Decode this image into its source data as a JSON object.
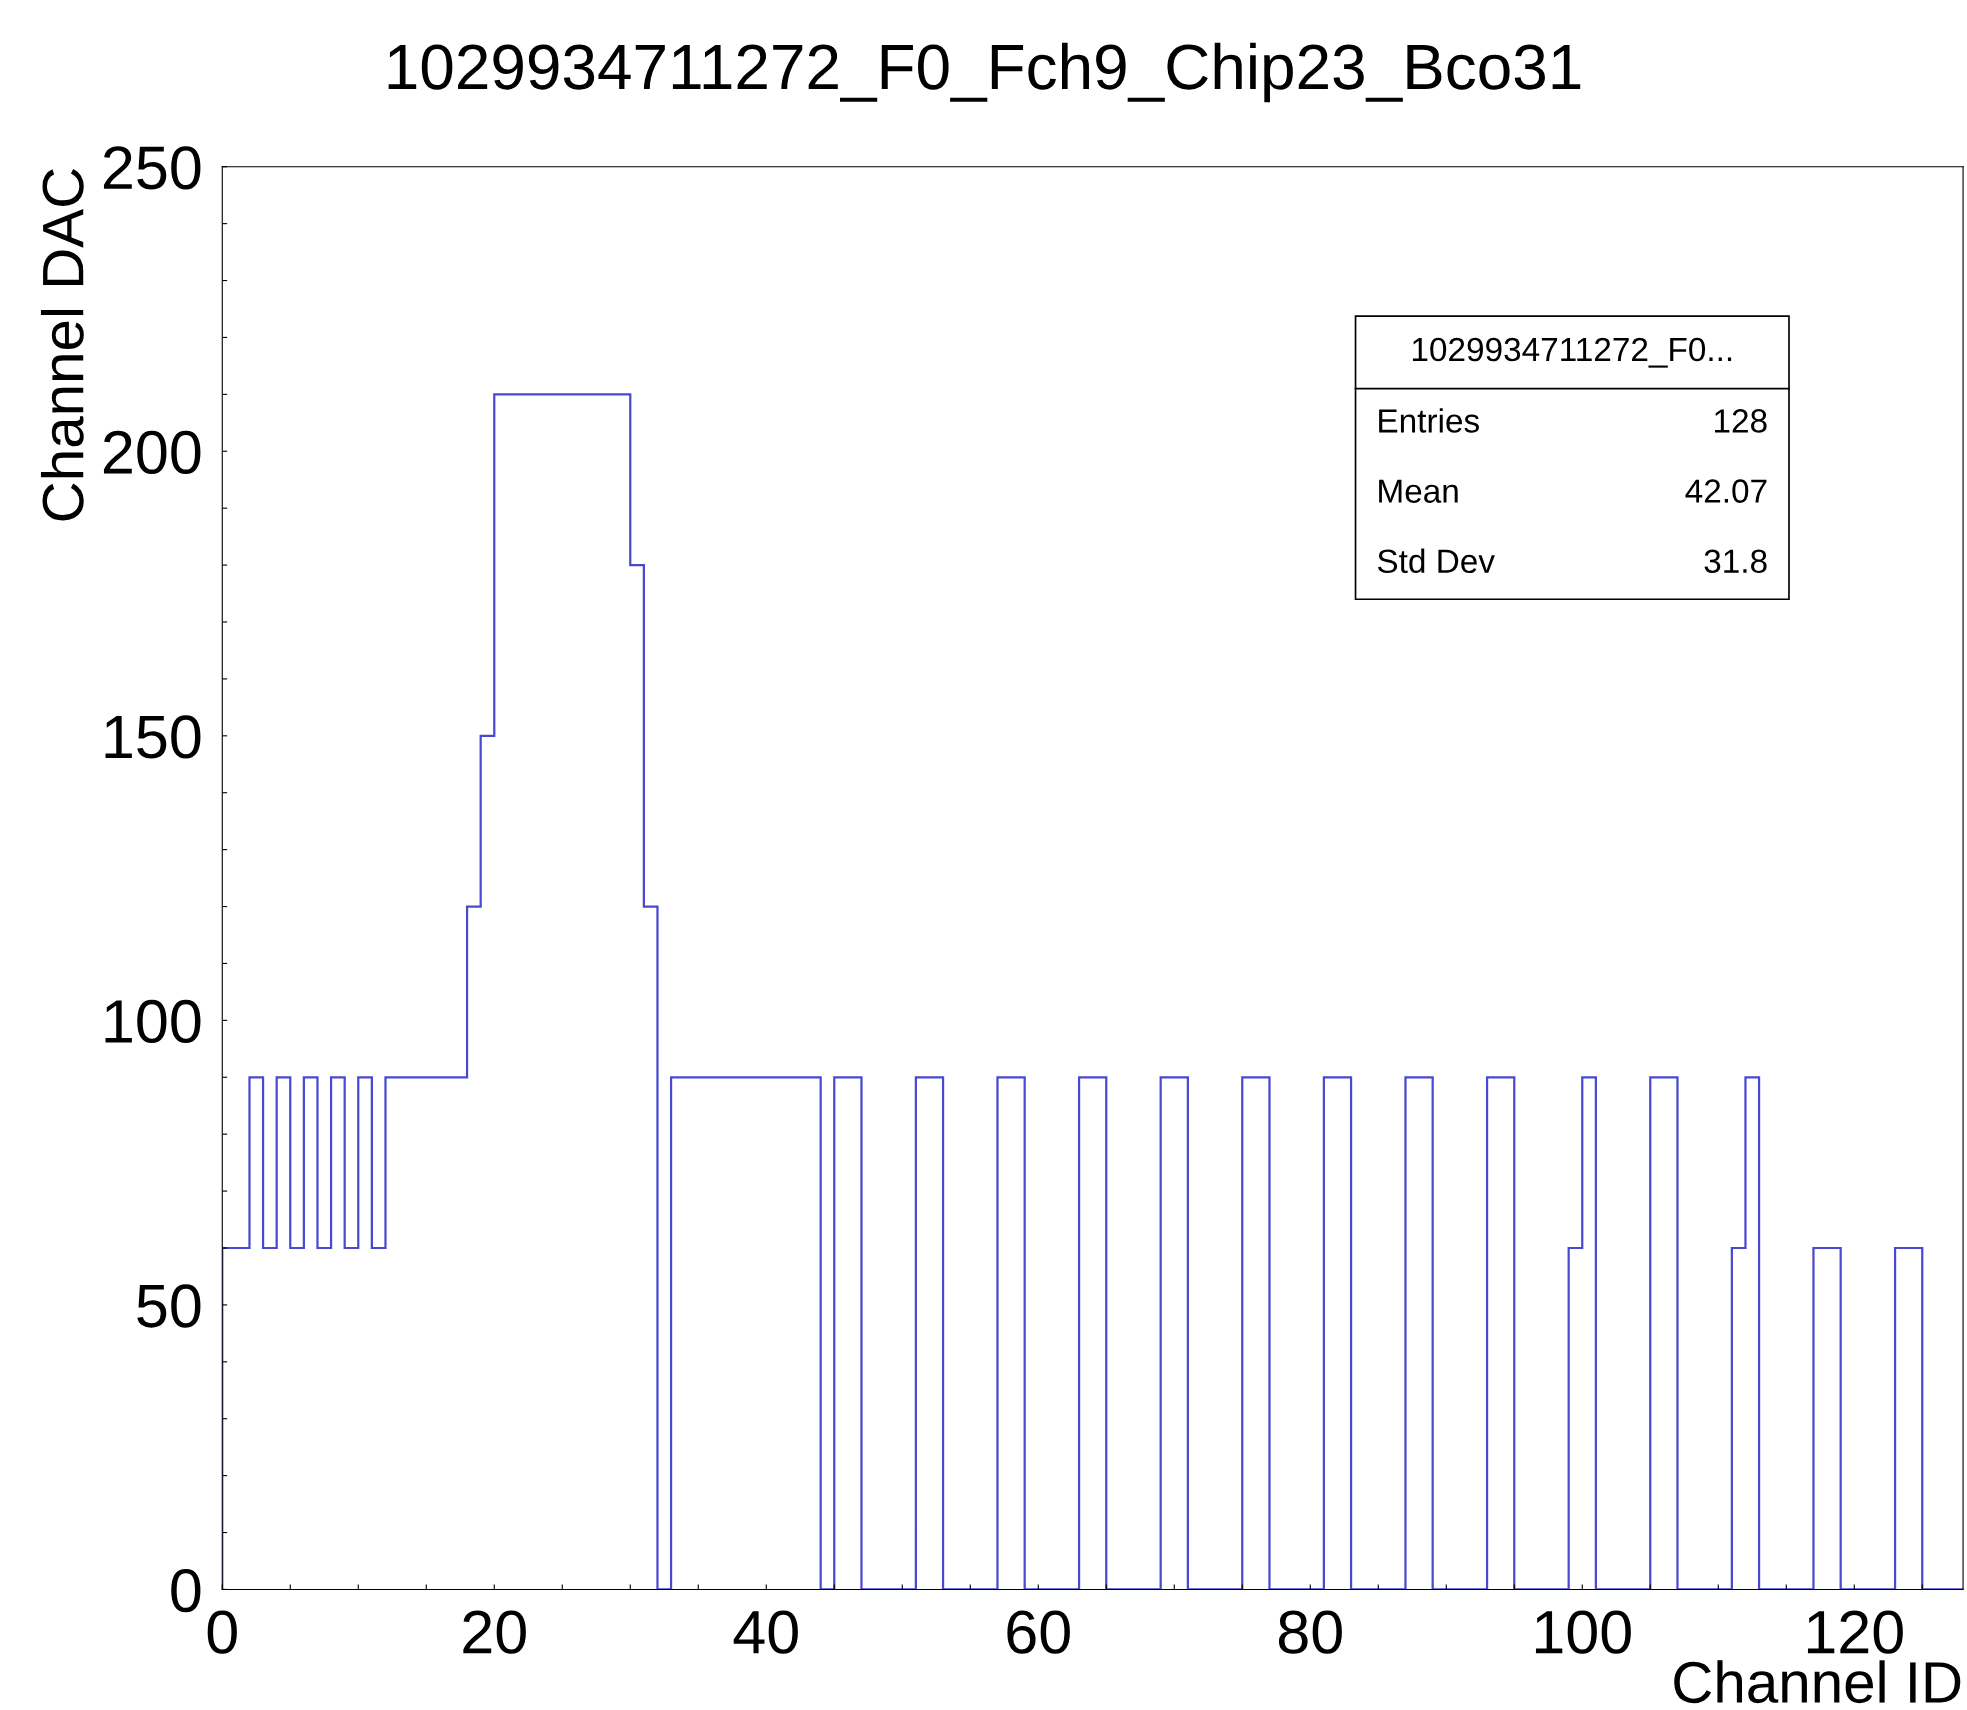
{
  "chart_data": {
    "type": "histogram",
    "title": "1029934711272_F0_Fch9_Chip23_Bco31",
    "xlabel": "Channel ID",
    "ylabel": "Channel DAC",
    "bins": [
      0,
      1,
      2,
      3,
      4,
      5,
      6,
      7,
      8,
      9,
      10,
      11,
      12,
      13,
      14,
      15,
      16,
      17,
      18,
      19,
      20,
      21,
      22,
      23,
      24,
      25,
      26,
      27,
      28,
      29,
      30,
      31,
      32,
      33,
      34,
      35,
      36,
      37,
      38,
      39,
      40,
      41,
      42,
      43,
      44,
      45,
      46,
      47,
      48,
      49,
      50,
      51,
      52,
      53,
      54,
      55,
      56,
      57,
      58,
      59,
      60,
      61,
      62,
      63,
      64,
      65,
      66,
      67,
      68,
      69,
      70,
      71,
      72,
      73,
      74,
      75,
      76,
      77,
      78,
      79,
      80,
      81,
      82,
      83,
      84,
      85,
      86,
      87,
      88,
      89,
      90,
      91,
      92,
      93,
      94,
      95,
      96,
      97,
      98,
      99,
      100,
      101,
      102,
      103,
      104,
      105,
      106,
      107,
      108,
      109,
      110,
      111,
      112,
      113,
      114,
      115,
      116,
      117,
      118,
      119,
      120,
      121,
      122,
      123,
      124,
      125,
      126,
      127,
      128
    ],
    "values": [
      60,
      60,
      90,
      60,
      90,
      60,
      90,
      60,
      90,
      60,
      90,
      60,
      90,
      90,
      90,
      90,
      90,
      90,
      120,
      150,
      210,
      210,
      210,
      210,
      210,
      210,
      210,
      210,
      210,
      210,
      180,
      120,
      0,
      90,
      90,
      90,
      90,
      90,
      90,
      90,
      90,
      90,
      90,
      90,
      0,
      90,
      90,
      0,
      0,
      0,
      0,
      90,
      90,
      0,
      0,
      0,
      0,
      90,
      90,
      0,
      0,
      0,
      0,
      90,
      90,
      0,
      0,
      0,
      0,
      90,
      90,
      0,
      0,
      0,
      0,
      90,
      90,
      0,
      0,
      0,
      0,
      90,
      90,
      0,
      0,
      0,
      0,
      90,
      90,
      0,
      0,
      0,
      0,
      90,
      90,
      0,
      0,
      0,
      0,
      60,
      90,
      0,
      0,
      0,
      0,
      90,
      90,
      0,
      0,
      0,
      0,
      60,
      90,
      0,
      0,
      0,
      0,
      60,
      60,
      0,
      0,
      0,
      0,
      60,
      60,
      0,
      0,
      0
    ],
    "color": "#4848d0",
    "xlim": [
      0,
      128
    ],
    "ylim": [
      0,
      250
    ],
    "xticks": [
      0,
      {
        "value": 5,
        "label": null
      },
      {
        "value": 10,
        "label": null
      },
      {
        "value": 15,
        "label": null
      },
      20,
      {
        "value": 25,
        "label": null
      },
      {
        "value": 30,
        "label": null
      },
      {
        "value": 35,
        "label": null
      },
      40,
      {
        "value": 45,
        "label": null
      },
      {
        "value": 50,
        "label": null
      },
      {
        "value": 55,
        "label": null
      },
      60,
      {
        "value": 65,
        "label": null
      },
      {
        "value": 70,
        "label": null
      },
      {
        "value": 75,
        "label": null
      },
      80,
      {
        "value": 85,
        "label": null
      },
      {
        "value": 90,
        "label": null
      },
      {
        "value": 95,
        "label": null
      },
      100,
      {
        "value": 105,
        "label": null
      },
      {
        "value": 110,
        "label": null
      },
      {
        "value": 115,
        "label": null
      },
      120,
      {
        "value": 125,
        "label": null
      }
    ],
    "yticks": [
      0,
      {
        "value": 10,
        "label": null
      },
      {
        "value": 20,
        "label": null
      },
      {
        "value": 30,
        "label": null
      },
      {
        "value": 40,
        "label": null
      },
      50,
      {
        "value": 60,
        "label": null
      },
      {
        "value": 70,
        "label": null
      },
      {
        "value": 80,
        "label": null
      },
      {
        "value": 90,
        "label": null
      },
      100,
      {
        "value": 110,
        "label": null
      },
      {
        "value": 120,
        "label": null
      },
      {
        "value": 130,
        "label": null
      },
      {
        "value": 140,
        "label": null
      },
      150,
      {
        "value": 160,
        "label": null
      },
      {
        "value": 170,
        "label": null
      },
      {
        "value": 180,
        "label": null
      },
      {
        "value": 190,
        "label": null
      },
      200,
      {
        "value": 210,
        "label": null
      },
      {
        "value": 220,
        "label": null
      },
      {
        "value": 230,
        "label": null
      },
      {
        "value": 240,
        "label": null
      },
      250
    ],
    "grid": false,
    "annotations": [
      "1029934711272_F0...",
      "Entries",
      "128",
      "Mean",
      "42.07",
      "Std Dev",
      "31.8"
    ]
  }
}
